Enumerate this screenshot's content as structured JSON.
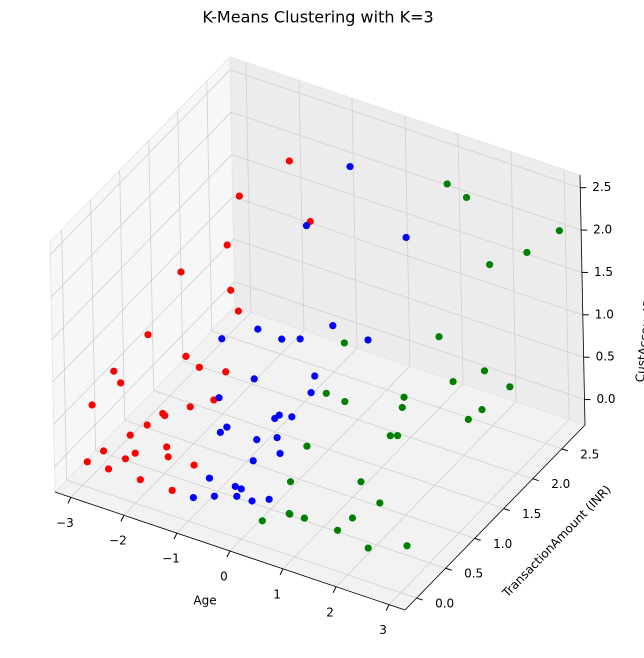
{
  "chart_data": {
    "type": "scatter3d",
    "title": "K-Means Clustering with K=3",
    "xlabel": "Age",
    "ylabel": "TransactionAmount (INR)",
    "zlabel": "CustAccountBalance (INR)",
    "xlim": [
      -3.3,
      3.3
    ],
    "ylim": [
      -0.2,
      2.9
    ],
    "zlim": [
      -0.3,
      2.65
    ],
    "xticks": [
      {
        "value": -3,
        "label": "−3"
      },
      {
        "value": -2,
        "label": "−2"
      },
      {
        "value": -1,
        "label": "−1"
      },
      0,
      1,
      2,
      3
    ],
    "yticks": [
      {
        "value": 0,
        "label": "0.0"
      },
      0.5,
      {
        "value": 1,
        "label": "1.0"
      },
      1.5,
      {
        "value": 2,
        "label": "2.0"
      },
      2.5
    ],
    "zticks": [
      {
        "value": 0,
        "label": "0.0"
      },
      0.5,
      {
        "value": 1,
        "label": "1.0"
      },
      1.5,
      {
        "value": 2,
        "label": "2.0"
      },
      2.5
    ],
    "grid": true,
    "series": [
      {
        "color": "#ff0000",
        "x": [
          -2.9,
          -2.7,
          -2.5,
          -2.3,
          -2.1,
          -1.9,
          -1.7,
          -1.5,
          -1.3,
          -1.1,
          -2.8,
          -2.6,
          -2.4,
          -2.2,
          -2.0,
          -1.8,
          -1.6,
          -1.4,
          -1.2,
          -2.5,
          -2.0,
          -1.5,
          -2.7,
          -2.2,
          -1.7,
          -1.3,
          -2.4,
          -1.9,
          -1.6,
          -2.9
        ],
        "y": [
          0.0,
          0.1,
          0.0,
          0.2,
          0.1,
          0.0,
          0.3,
          0.1,
          0.0,
          0.2,
          0.5,
          0.8,
          1.2,
          0.4,
          0.9,
          1.5,
          0.6,
          1.1,
          2.0,
          2.3,
          1.8,
          2.6,
          0.3,
          0.7,
          1.3,
          0.5,
          0.2,
          0.4,
          1.0,
          0.1
        ],
        "z": [
          0.0,
          0.1,
          0.0,
          0.3,
          0.2,
          0.0,
          0.1,
          0.4,
          0.0,
          0.2,
          0.6,
          1.0,
          1.5,
          0.3,
          0.8,
          1.2,
          0.5,
          2.1,
          2.5,
          1.6,
          0.7,
          1.3,
          0.9,
          0.2,
          0.4,
          1.1,
          0.0,
          0.5,
          0.3,
          0.6
        ]
      },
      {
        "color": "#0000ff",
        "x": [
          -0.9,
          -0.7,
          -0.5,
          -0.3,
          -0.1,
          0.1,
          0.2,
          -0.8,
          -0.6,
          -0.4,
          -0.2,
          0.0,
          -0.9,
          -0.5,
          -0.1,
          0.2,
          -0.7,
          -0.3,
          0.1,
          -0.6,
          -0.2,
          0.0,
          -0.8,
          -0.4,
          0.2,
          -0.5,
          -0.1,
          -0.3,
          0.1,
          -0.7
        ],
        "y": [
          0.0,
          0.1,
          0.0,
          0.2,
          0.0,
          0.1,
          0.3,
          0.5,
          0.8,
          1.1,
          1.4,
          0.6,
          2.0,
          2.4,
          1.7,
          2.7,
          0.3,
          0.9,
          1.2,
          0.2,
          0.4,
          2.2,
          1.0,
          0.7,
          0.5,
          1.5,
          0.1,
          0.0,
          0.8,
          1.3
        ],
        "z": [
          0.0,
          0.2,
          0.1,
          0.0,
          0.3,
          0.1,
          0.0,
          0.5,
          0.9,
          1.2,
          0.4,
          0.7,
          1.8,
          2.3,
          1.0,
          1.4,
          0.6,
          0.2,
          0.8,
          1.1,
          0.3,
          0.5,
          0.0,
          1.6,
          0.4,
          0.9,
          0.2,
          2.0,
          0.6,
          0.1
        ]
      },
      {
        "color": "#008000",
        "x": [
          0.4,
          0.8,
          1.2,
          1.6,
          2.0,
          2.4,
          2.8,
          0.6,
          1.0,
          1.4,
          1.8,
          2.2,
          2.6,
          3.0,
          0.5,
          0.9,
          1.3,
          1.7,
          2.1,
          2.5,
          2.9,
          0.7,
          1.1,
          1.5,
          1.9,
          2.3,
          2.7,
          1.0,
          2.0,
          3.0
        ],
        "y": [
          0.0,
          0.1,
          0.0,
          0.2,
          0.1,
          0.0,
          0.3,
          0.6,
          0.9,
          1.3,
          1.8,
          2.2,
          2.6,
          2.8,
          0.4,
          1.0,
          1.6,
          2.4,
          0.8,
          1.4,
          2.0,
          0.2,
          0.5,
          0.7,
          1.1,
          0.3,
          1.7,
          2.7,
          2.5,
          1.2
        ],
        "z": [
          0.0,
          0.1,
          0.2,
          0.0,
          0.3,
          0.1,
          0.0,
          0.5,
          0.9,
          0.3,
          1.2,
          0.6,
          1.8,
          2.0,
          0.2,
          1.5,
          0.4,
          2.4,
          0.8,
          1.1,
          0.7,
          0.0,
          1.3,
          0.2,
          1.0,
          0.4,
          0.6,
          2.2,
          1.6,
          0.9
        ]
      }
    ]
  }
}
